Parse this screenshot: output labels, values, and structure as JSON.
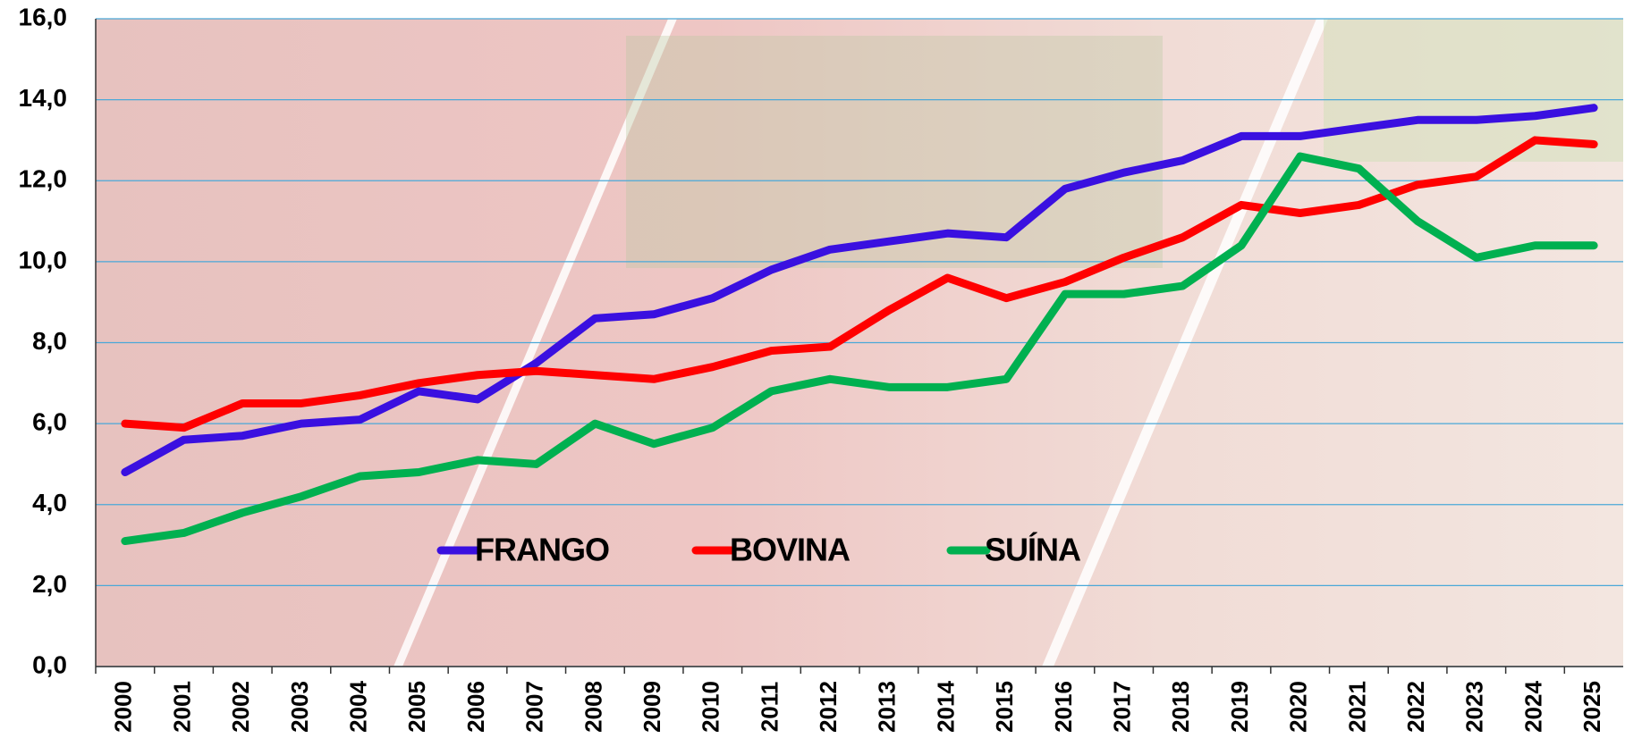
{
  "chart_data": {
    "type": "line",
    "categories": [
      "2000",
      "2001",
      "2002",
      "2003",
      "2004",
      "2005",
      "2006",
      "2007",
      "2008",
      "2009",
      "2010",
      "2011",
      "2012",
      "2013",
      "2014",
      "2015",
      "2016",
      "2017",
      "2018",
      "2019",
      "2020",
      "2021",
      "2022",
      "2023",
      "2024",
      "2025"
    ],
    "series": [
      {
        "name": "FRANGO",
        "color": "#3a10e0",
        "values": [
          4.8,
          5.6,
          5.7,
          6.0,
          6.1,
          6.8,
          6.6,
          7.5,
          8.6,
          8.7,
          9.1,
          9.8,
          10.3,
          10.5,
          10.7,
          10.6,
          11.8,
          12.2,
          12.5,
          13.1,
          13.1,
          13.3,
          13.5,
          13.5,
          13.6,
          13.8
        ]
      },
      {
        "name": "BOVINA",
        "color": "#ff0000",
        "values": [
          6.0,
          5.9,
          6.5,
          6.5,
          6.7,
          7.0,
          7.2,
          7.3,
          7.2,
          7.1,
          7.4,
          7.8,
          7.9,
          8.8,
          9.6,
          9.1,
          9.5,
          10.1,
          10.6,
          11.4,
          11.2,
          11.4,
          11.9,
          12.1,
          13.0,
          12.9
        ]
      },
      {
        "name": "SUÍNA",
        "color": "#00b050",
        "values": [
          3.1,
          3.3,
          3.8,
          4.2,
          4.7,
          4.8,
          5.1,
          5.0,
          6.0,
          5.5,
          5.9,
          6.8,
          7.1,
          6.9,
          6.9,
          7.1,
          9.2,
          9.2,
          9.4,
          10.4,
          12.6,
          12.3,
          11.0,
          10.1,
          10.4,
          10.4
        ]
      }
    ],
    "ylim": [
      0,
      16
    ],
    "yticks": [
      {
        "value": 0,
        "label": "0,0"
      },
      {
        "value": 2,
        "label": "2,0"
      },
      {
        "value": 4,
        "label": "4,0"
      },
      {
        "value": 6,
        "label": "6,0"
      },
      {
        "value": 8,
        "label": "8,0"
      },
      {
        "value": 10,
        "label": "10,0"
      },
      {
        "value": 12,
        "label": "12,0"
      },
      {
        "value": 14,
        "label": "14,0"
      },
      {
        "value": 16,
        "label": "16,0"
      }
    ],
    "grid": true,
    "legend": "center"
  }
}
